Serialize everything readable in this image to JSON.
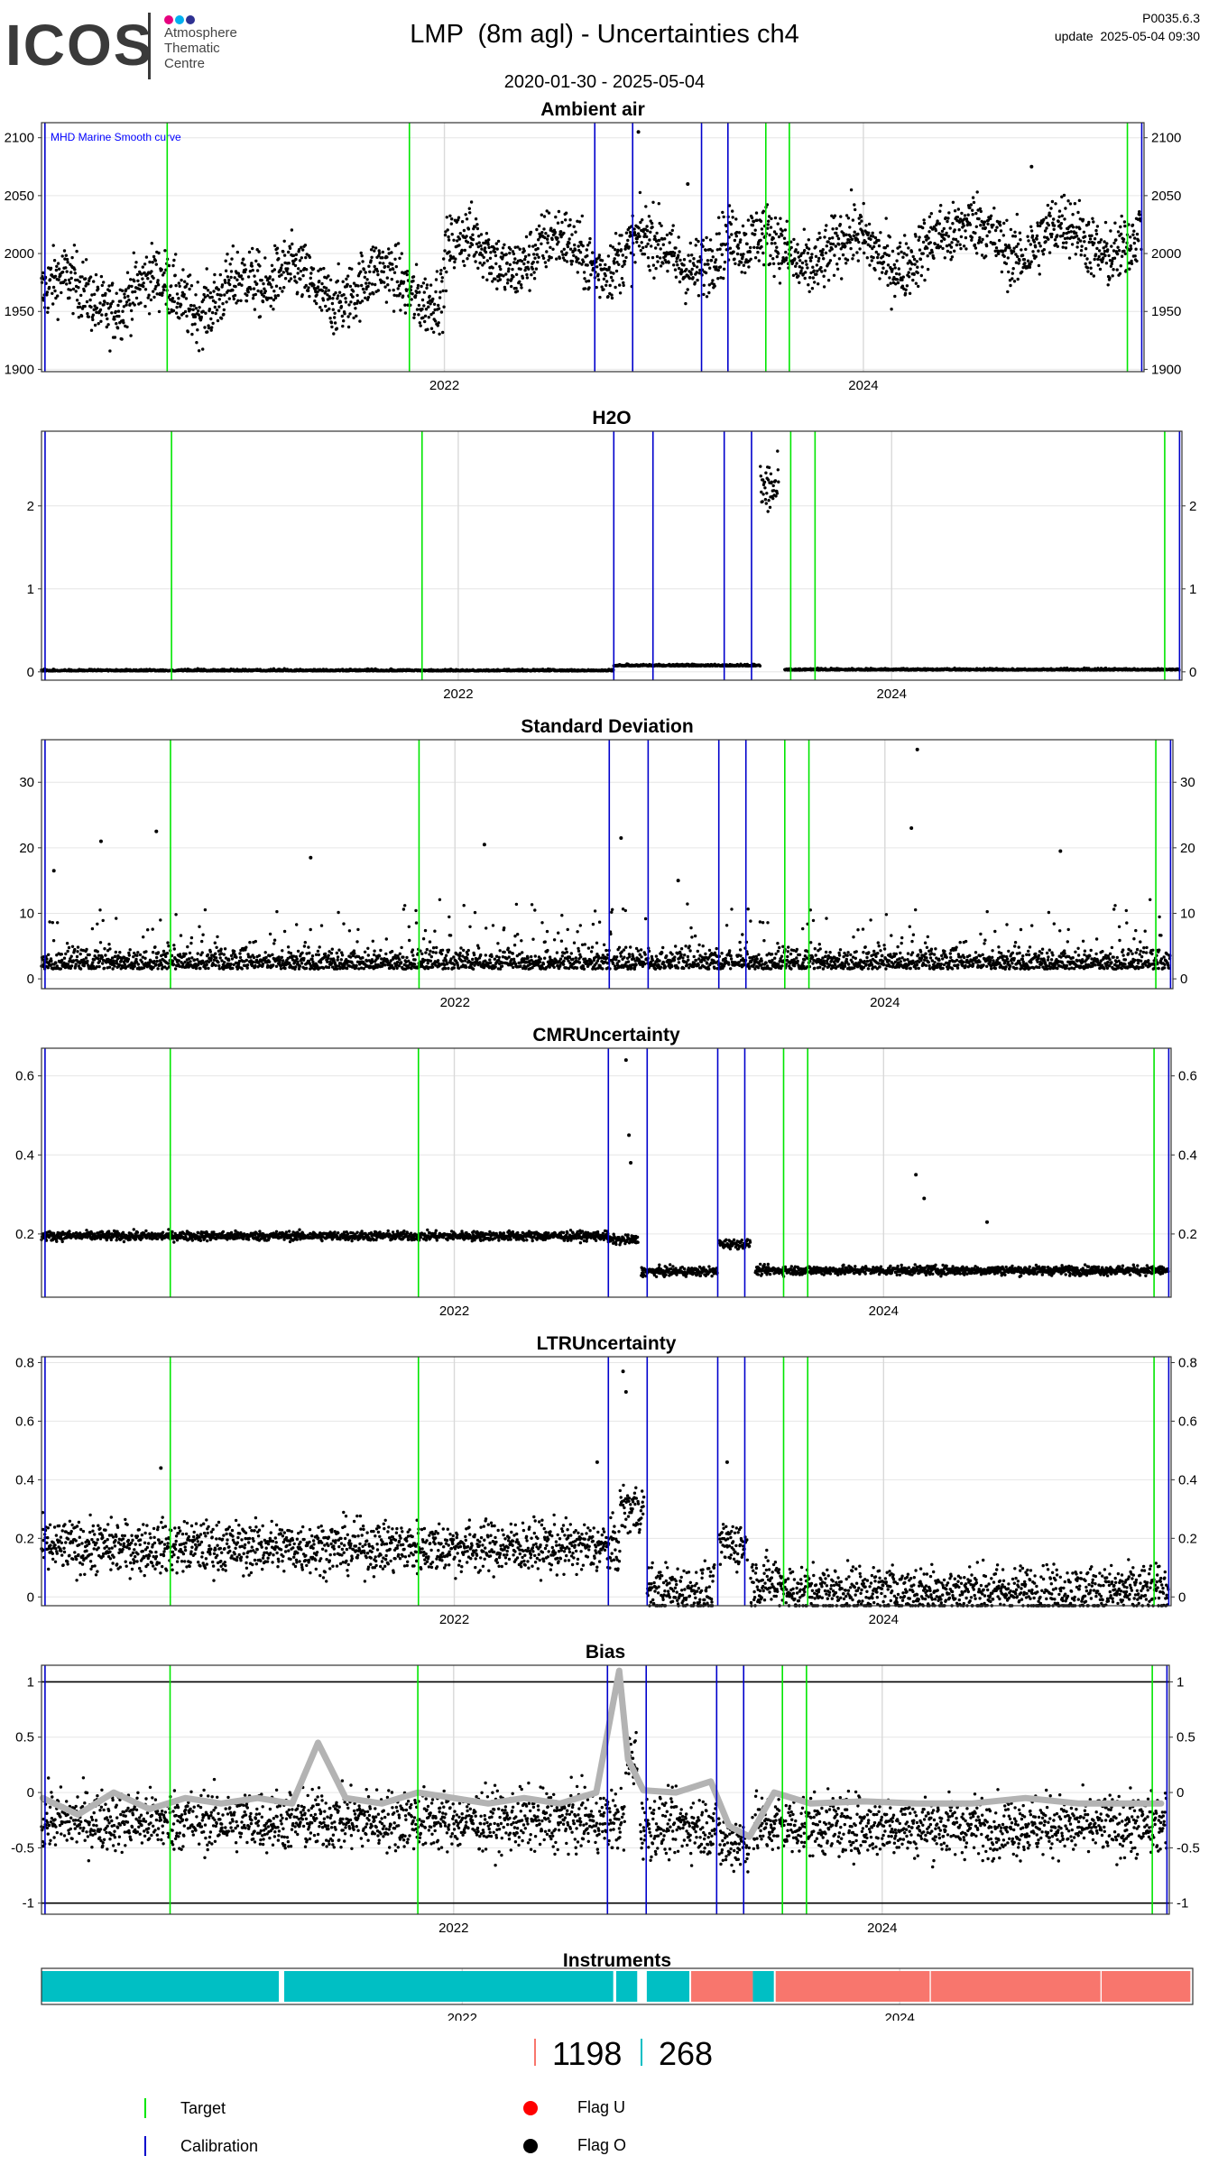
{
  "logo": {
    "word": "ICOS",
    "lines": [
      "Atmosphere",
      "Thematic",
      "Centre"
    ],
    "dot_colors": [
      "#e6007e",
      "#00b0f0",
      "#2e3192"
    ]
  },
  "header": {
    "title": "LMP  (8m agl) - Uncertainties ch4",
    "date_range": "2020-01-30 - 2025-05-04",
    "version": "P0035.6.3",
    "update": "update  2025-05-04 09:30"
  },
  "colors": {
    "target": "#00e600",
    "calibration": "#0000cc",
    "points": "#000000",
    "smooth": "#b3b3b3",
    "instrument_a": "#f8766d",
    "instrument_b": "#00bfc4",
    "flag_u": "#ff0000",
    "flag_o": "#000000"
  },
  "chart_data": [
    {
      "id": "ambient",
      "type": "scatter",
      "title": "Ambient air",
      "annotation": "MHD Marine Smooth curve",
      "xlim": [
        "2020-01-30",
        "2025-05-04"
      ],
      "ylim": [
        1898,
        2113
      ],
      "yticks": [
        1900,
        1950,
        2000,
        2050,
        2100
      ],
      "xticks": [
        "2022",
        "2024"
      ],
      "grid": true,
      "baseline_segments": [
        [
          "2020-01-30",
          "2021-03-01",
          1965
        ],
        [
          "2021-03-01",
          "2022-01-01",
          1972
        ],
        [
          "2022-01-01",
          "2023-06-01",
          2000
        ],
        [
          "2023-06-01",
          "2024-06-01",
          2002
        ],
        [
          "2024-06-01",
          "2025-04-30",
          2012
        ]
      ],
      "scatter_spread": 28,
      "outliers": [
        [
          "2022-12-05",
          2105
        ],
        [
          "2023-03-01",
          2060
        ],
        [
          "2024-10-20",
          2075
        ]
      ]
    },
    {
      "id": "h2o",
      "type": "scatter",
      "title": "H2O",
      "xlim": [
        "2020-01-30",
        "2025-05-04"
      ],
      "ylim": [
        -0.1,
        2.9
      ],
      "yticks": [
        0,
        1,
        2
      ],
      "xticks": [
        "2022",
        "2024"
      ],
      "grid": true,
      "baseline_segments": [
        [
          "2020-01-30",
          "2022-09-20",
          0.01
        ],
        [
          "2022-09-20",
          "2023-05-25",
          0.07
        ],
        [
          "2023-05-25",
          "2023-06-25",
          2.2
        ],
        [
          "2023-07-05",
          "2025-04-30",
          0.02
        ]
      ],
      "scatter_spread": 0.02
    },
    {
      "id": "stddev",
      "type": "scatter",
      "title": "Standard Deviation",
      "xlim": [
        "2020-01-30",
        "2025-05-04"
      ],
      "ylim": [
        -1.5,
        36.5
      ],
      "yticks": [
        0,
        10,
        20,
        30
      ],
      "xticks": [
        "2022",
        "2024"
      ],
      "grid": true,
      "baseline_segments": [
        [
          "2020-01-30",
          "2025-04-30",
          1.5
        ]
      ],
      "scatter_spread": 3,
      "outliers": [
        [
          "2020-02-20",
          16.5
        ],
        [
          "2020-05-10",
          21
        ],
        [
          "2020-08-12",
          22.5
        ],
        [
          "2021-05-01",
          18.5
        ],
        [
          "2022-02-20",
          20.5
        ],
        [
          "2022-10-10",
          21.5
        ],
        [
          "2023-01-15",
          15
        ],
        [
          "2024-02-25",
          35
        ],
        [
          "2024-02-15",
          23
        ],
        [
          "2024-10-25",
          19.5
        ]
      ]
    },
    {
      "id": "cmr",
      "type": "scatter",
      "title": "CMRUncertainty",
      "xlim": [
        "2020-01-30",
        "2025-05-04"
      ],
      "ylim": [
        0.04,
        0.67
      ],
      "yticks": [
        0.2,
        0.4,
        0.6
      ],
      "xticks": [
        "2022",
        "2024"
      ],
      "grid": true,
      "baseline_segments": [
        [
          "2020-01-30",
          "2022-09-20",
          0.195
        ],
        [
          "2022-09-20",
          "2022-11-10",
          0.185
        ],
        [
          "2022-11-15",
          "2023-03-25",
          0.105
        ],
        [
          "2023-03-28",
          "2023-05-20",
          0.175
        ],
        [
          "2023-05-28",
          "2025-04-30",
          0.108
        ]
      ],
      "scatter_spread": 0.012,
      "outliers": [
        [
          "2022-10-20",
          0.64
        ],
        [
          "2022-10-25",
          0.45
        ],
        [
          "2022-10-28",
          0.38
        ],
        [
          "2024-02-25",
          0.35
        ],
        [
          "2024-03-10",
          0.29
        ],
        [
          "2024-06-25",
          0.23
        ]
      ]
    },
    {
      "id": "ltr",
      "type": "scatter",
      "title": "LTRUncertainty",
      "xlim": [
        "2020-01-30",
        "2025-05-04"
      ],
      "ylim": [
        -0.03,
        0.82
      ],
      "yticks": [
        0.0,
        0.2,
        0.4,
        0.6,
        0.8
      ],
      "xticks": [
        "2022",
        "2024"
      ],
      "grid": true,
      "baseline_segments": [
        [
          "2020-01-30",
          "2022-10-10",
          0.17
        ],
        [
          "2022-10-10",
          "2022-11-20",
          0.3
        ],
        [
          "2022-11-25",
          "2023-03-20",
          0.02
        ],
        [
          "2023-03-28",
          "2023-05-15",
          0.18
        ],
        [
          "2023-05-20",
          "2023-07-20",
          0.05
        ],
        [
          "2023-07-20",
          "2025-04-30",
          0.02
        ]
      ],
      "scatter_spread": 0.09,
      "outliers": [
        [
          "2022-10-15",
          0.77
        ],
        [
          "2022-10-20",
          0.7
        ],
        [
          "2020-08-20",
          0.44
        ],
        [
          "2022-09-01",
          0.46
        ],
        [
          "2023-04-10",
          0.46
        ]
      ]
    },
    {
      "id": "bias",
      "type": "scatter",
      "title": "Bias",
      "xlim": [
        "2020-01-30",
        "2025-05-04"
      ],
      "ylim": [
        -1.1,
        1.15
      ],
      "yticks": [
        -1.0,
        -0.5,
        0.0,
        0.5,
        1.0
      ],
      "xticks": [
        "2022",
        "2024"
      ],
      "grid": true,
      "hlines": [
        1.0,
        -1.0
      ],
      "baseline_segments": [
        [
          "2020-01-30",
          "2022-10-20",
          -0.25
        ],
        [
          "2022-10-20",
          "2022-11-10",
          0.3
        ],
        [
          "2022-11-15",
          "2023-03-25",
          -0.3
        ],
        [
          "2023-03-28",
          "2023-05-20",
          -0.45
        ],
        [
          "2023-05-25",
          "2025-04-30",
          -0.3
        ]
      ],
      "scatter_spread": 0.28,
      "smooth": [
        [
          "2020-02-01",
          -0.05
        ],
        [
          "2020-04-01",
          -0.2
        ],
        [
          "2020-06-01",
          0.0
        ],
        [
          "2020-08-01",
          -0.15
        ],
        [
          "2020-10-01",
          -0.05
        ],
        [
          "2020-12-01",
          -0.1
        ],
        [
          "2021-02-01",
          -0.05
        ],
        [
          "2021-04-01",
          -0.1
        ],
        [
          "2021-05-15",
          0.45
        ],
        [
          "2021-07-01",
          -0.05
        ],
        [
          "2021-09-01",
          -0.1
        ],
        [
          "2021-11-01",
          0.0
        ],
        [
          "2022-01-01",
          -0.05
        ],
        [
          "2022-03-01",
          -0.1
        ],
        [
          "2022-05-01",
          -0.05
        ],
        [
          "2022-07-01",
          -0.1
        ],
        [
          "2022-09-01",
          0.0
        ],
        [
          "2022-10-10",
          1.1
        ],
        [
          "2022-10-25",
          0.3
        ],
        [
          "2022-11-20",
          0.02
        ],
        [
          "2023-01-15",
          0.0
        ],
        [
          "2023-03-15",
          0.1
        ],
        [
          "2023-04-15",
          -0.3
        ],
        [
          "2023-05-20",
          -0.4
        ],
        [
          "2023-07-01",
          0.0
        ],
        [
          "2023-09-01",
          -0.1
        ],
        [
          "2023-12-01",
          -0.08
        ],
        [
          "2024-03-01",
          -0.1
        ],
        [
          "2024-06-01",
          -0.1
        ],
        [
          "2024-09-01",
          -0.05
        ],
        [
          "2024-12-01",
          -0.1
        ],
        [
          "2025-04-20",
          -0.1
        ]
      ]
    },
    {
      "id": "instruments",
      "type": "bar",
      "title": "Instruments",
      "xlim": [
        "2020-01-30",
        "2025-05-04"
      ],
      "xticks": [
        "2022",
        "2024"
      ],
      "segments": [
        [
          "2020-01-30",
          "2021-03-01",
          "b"
        ],
        [
          "2021-03-10",
          "2022-09-10",
          "b"
        ],
        [
          "2022-09-15",
          "2022-10-20",
          "b"
        ],
        [
          "2022-11-05",
          "2023-01-15",
          "b"
        ],
        [
          "2023-01-18",
          "2023-05-01",
          "a"
        ],
        [
          "2023-05-01",
          "2023-06-05",
          "b"
        ],
        [
          "2023-06-08",
          "2024-02-20",
          "a"
        ],
        [
          "2024-02-22",
          "2024-12-01",
          "a"
        ],
        [
          "2024-12-03",
          "2025-04-30",
          "a"
        ]
      ]
    }
  ],
  "events": {
    "target": [
      "2020-09-05",
      "2021-11-01",
      "2023-07-15",
      "2023-08-25",
      "2025-04-05"
    ],
    "calibration": [
      "2020-02-05",
      "2022-09-20",
      "2022-11-25",
      "2023-03-25",
      "2023-05-10",
      "2025-04-30"
    ]
  },
  "counts": {
    "a": "1198",
    "b": "268"
  },
  "legend": {
    "target": "Target",
    "calibration": "Calibration",
    "flag_u": "Flag U",
    "flag_o": "Flag O"
  }
}
